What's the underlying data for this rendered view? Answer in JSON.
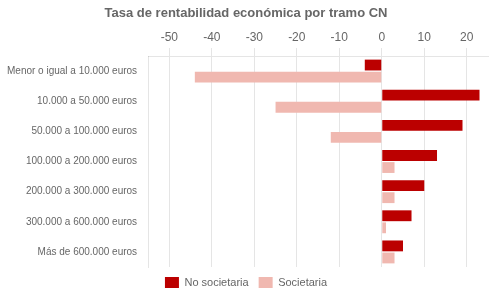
{
  "chart_data": {
    "type": "bar",
    "orientation": "horizontal",
    "title": "Tasa de rentabilidad económica por tramo CN",
    "categories": [
      "Menor o igual a 10.000 euros",
      "10.000 a 50.000 euros",
      "50.000 a 100.000 euros",
      "100.000 a 200.000 euros",
      "200.000 a 300.000 euros",
      "300.000 a 600.000 euros",
      "Más de 600.000 euros"
    ],
    "series": [
      {
        "name": "No societaria",
        "color": "#bb0000",
        "values": [
          -4,
          23,
          19,
          13,
          10,
          7,
          5
        ]
      },
      {
        "name": "Societaria",
        "color": "#f0b8b0",
        "values": [
          -44,
          -25,
          -12,
          3,
          3,
          1,
          3
        ]
      }
    ],
    "xlim": [
      -55,
      25
    ],
    "xticks": [
      -50,
      -40,
      -30,
      -20,
      -10,
      0,
      10,
      20
    ],
    "grid": true,
    "legend": "bottom"
  }
}
